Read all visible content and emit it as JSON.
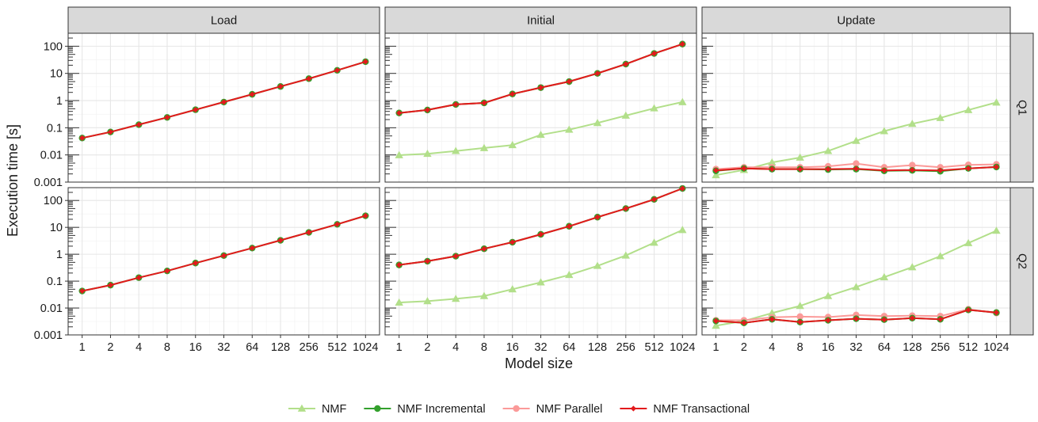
{
  "chart_data": {
    "type": "line",
    "xlabel": "Model size",
    "ylabel": "Execution time [s]",
    "y_scale": "log",
    "ylim": [
      0.001,
      300
    ],
    "x": [
      1,
      2,
      4,
      8,
      16,
      32,
      64,
      128,
      256,
      512,
      1024
    ],
    "x_tick_labels": [
      "1",
      "2",
      "4",
      "8",
      "16",
      "32",
      "64",
      "128",
      "256",
      "512",
      "1024"
    ],
    "y_ticks": [
      0.001,
      0.01,
      0.1,
      1,
      10,
      100
    ],
    "y_tick_labels": [
      "0.001",
      "0.01",
      "0.1",
      "1",
      "10",
      "100"
    ],
    "facet_columns": [
      "Load",
      "Initial",
      "Update"
    ],
    "facet_rows": [
      "Q1",
      "Q2"
    ],
    "grid": true,
    "legend_position": "bottom",
    "series_styles": [
      {
        "name": "NMF",
        "color": "#b2df8a",
        "marker": "triangle"
      },
      {
        "name": "NMF Incremental",
        "color": "#33a02c",
        "marker": "circle"
      },
      {
        "name": "NMF Parallel",
        "color": "#fb9a99",
        "marker": "circle"
      },
      {
        "name": "NMF Transactional",
        "color": "#e31a1c",
        "marker": "diamond"
      }
    ],
    "panels": [
      {
        "row": "Q1",
        "column": "Load",
        "series": [
          {
            "name": "NMF Incremental",
            "values": [
              0.042,
              0.07,
              0.13,
              0.24,
              0.46,
              0.88,
              1.7,
              3.3,
              6.4,
              13,
              27
            ]
          },
          {
            "name": "NMF Transactional",
            "values": [
              0.042,
              0.07,
              0.13,
              0.24,
              0.46,
              0.88,
              1.7,
              3.3,
              6.4,
              13,
              27
            ]
          }
        ]
      },
      {
        "row": "Q1",
        "column": "Initial",
        "series": [
          {
            "name": "NMF",
            "values": [
              0.0098,
              0.011,
              0.014,
              0.018,
              0.023,
              0.055,
              0.085,
              0.15,
              0.28,
              0.52,
              0.88
            ]
          },
          {
            "name": "NMF Incremental",
            "values": [
              0.35,
              0.45,
              0.72,
              0.82,
              1.75,
              3.0,
              5.0,
              10,
              22,
              54,
              120
            ]
          },
          {
            "name": "NMF Parallel",
            "values": [
              0.35,
              0.45,
              0.72,
              0.82,
              1.75,
              3.0,
              5.0,
              10,
              22,
              54,
              120
            ]
          },
          {
            "name": "NMF Transactional",
            "values": [
              0.35,
              0.45,
              0.72,
              0.82,
              1.75,
              3.0,
              5.0,
              10,
              22,
              54,
              120
            ]
          }
        ]
      },
      {
        "row": "Q1",
        "column": "Update",
        "series": [
          {
            "name": "NMF",
            "values": [
              0.0018,
              0.0028,
              0.0053,
              0.008,
              0.014,
              0.033,
              0.075,
              0.14,
              0.23,
              0.45,
              0.85
            ]
          },
          {
            "name": "NMF Incremental",
            "values": [
              0.0026,
              0.0032,
              0.003,
              0.003,
              0.0029,
              0.003,
              0.0026,
              0.0027,
              0.0025,
              0.0032,
              0.0036
            ]
          },
          {
            "name": "NMF Parallel",
            "values": [
              0.003,
              0.0035,
              0.0035,
              0.0035,
              0.0038,
              0.0048,
              0.0035,
              0.0042,
              0.0035,
              0.0043,
              0.0045
            ]
          },
          {
            "name": "NMF Transactional",
            "values": [
              0.0027,
              0.0032,
              0.003,
              0.003,
              0.003,
              0.0031,
              0.0027,
              0.0028,
              0.0027,
              0.0032,
              0.0036
            ]
          }
        ]
      },
      {
        "row": "Q2",
        "column": "Load",
        "series": [
          {
            "name": "NMF Incremental",
            "values": [
              0.043,
              0.071,
              0.135,
              0.24,
              0.47,
              0.89,
              1.7,
              3.3,
              6.5,
              13,
              27
            ]
          },
          {
            "name": "NMF Transactional",
            "values": [
              0.043,
              0.071,
              0.135,
              0.24,
              0.47,
              0.89,
              1.7,
              3.3,
              6.5,
              13,
              27
            ]
          }
        ]
      },
      {
        "row": "Q2",
        "column": "Initial",
        "series": [
          {
            "name": "NMF",
            "values": [
              0.016,
              0.018,
              0.022,
              0.028,
              0.05,
              0.09,
              0.17,
              0.37,
              0.9,
              2.7,
              8.0
            ]
          },
          {
            "name": "NMF Incremental",
            "values": [
              0.4,
              0.55,
              0.85,
              1.6,
              2.8,
              5.5,
              11,
              24,
              50,
              110,
              280
            ]
          },
          {
            "name": "NMF Parallel",
            "values": [
              0.4,
              0.55,
              0.85,
              1.6,
              2.8,
              5.5,
              11,
              24,
              50,
              110,
              280
            ]
          },
          {
            "name": "NMF Transactional",
            "values": [
              0.4,
              0.55,
              0.85,
              1.6,
              2.8,
              5.5,
              11,
              24,
              50,
              110,
              280
            ]
          }
        ]
      },
      {
        "row": "Q2",
        "column": "Update",
        "series": [
          {
            "name": "NMF",
            "values": [
              0.0022,
              0.0033,
              0.0065,
              0.012,
              0.028,
              0.06,
              0.14,
              0.33,
              0.85,
              2.6,
              7.5
            ]
          },
          {
            "name": "NMF Incremental",
            "values": [
              0.0033,
              0.0028,
              0.0038,
              0.003,
              0.0035,
              0.004,
              0.0037,
              0.0042,
              0.0038,
              0.0085,
              0.0068
            ]
          },
          {
            "name": "NMF Parallel",
            "values": [
              0.0035,
              0.0035,
              0.0045,
              0.0048,
              0.0046,
              0.0055,
              0.005,
              0.0052,
              0.005,
              0.009,
              0.0065
            ]
          },
          {
            "name": "NMF Transactional",
            "values": [
              0.0033,
              0.0028,
              0.0038,
              0.003,
              0.0035,
              0.004,
              0.0037,
              0.0042,
              0.0038,
              0.0085,
              0.0068
            ]
          }
        ]
      }
    ]
  }
}
